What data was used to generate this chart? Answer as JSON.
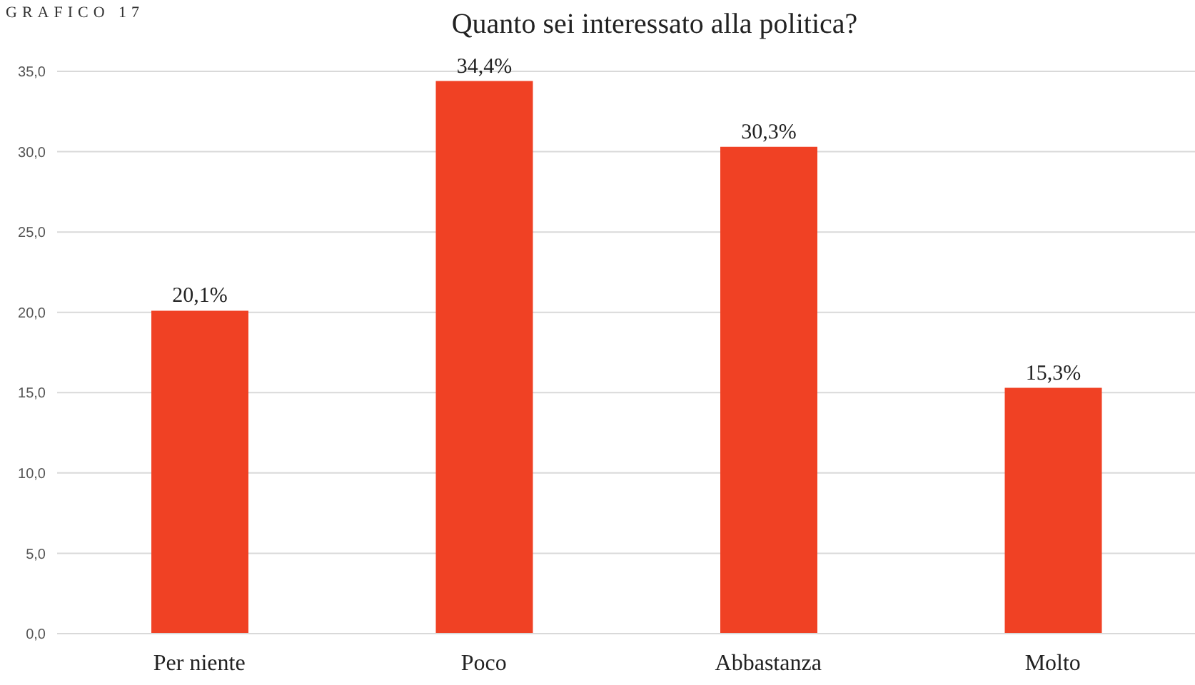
{
  "chart_data": {
    "type": "bar",
    "title": "Quanto sei interessato alla politica?",
    "annotations": [
      "GRAFICO 17"
    ],
    "categories": [
      "Per niente",
      "Poco",
      "Abbastanza",
      "Molto"
    ],
    "values": [
      20.1,
      34.4,
      30.3,
      15.3
    ],
    "value_labels": [
      "20,1%",
      "34,4%",
      "30,3%",
      "15,3%"
    ],
    "color": "#f04124",
    "ylim": [
      0,
      35
    ],
    "yticks": [
      {
        "value": 0,
        "label": "0,0"
      },
      {
        "value": 5,
        "label": "5,0"
      },
      {
        "value": 10,
        "label": "10,0"
      },
      {
        "value": 15,
        "label": "15,0"
      },
      {
        "value": 20,
        "label": "20,0"
      },
      {
        "value": 25,
        "label": "25,0"
      },
      {
        "value": 30,
        "label": "30,0"
      },
      {
        "value": 35,
        "label": "35,0"
      }
    ],
    "grid": "y"
  }
}
